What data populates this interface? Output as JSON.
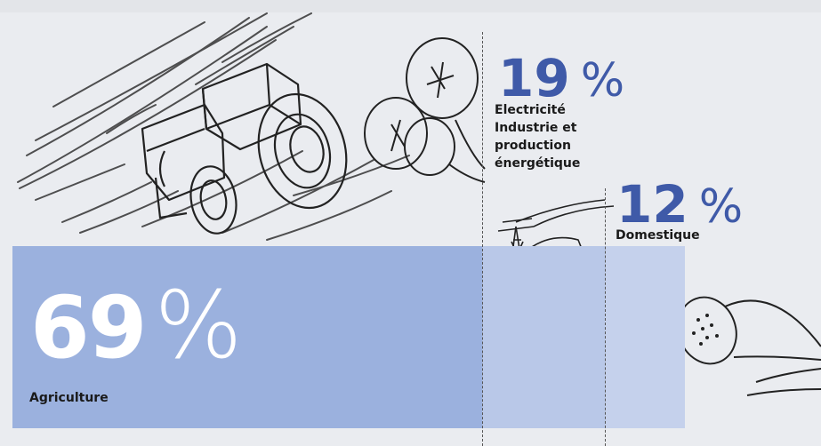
{
  "chart_data": {
    "type": "bar",
    "title": "",
    "categories": [
      "Agriculture",
      "Electricité Industrie et production énergétique",
      "Domestique"
    ],
    "values": [
      69,
      19,
      12
    ],
    "unit": "%",
    "xlabel": "",
    "ylabel": "",
    "grid": false,
    "legend": "none"
  },
  "labels": {
    "agriculture": {
      "value": "69",
      "unit": "%",
      "name": "Agriculture"
    },
    "electricite": {
      "value": "19",
      "unit": "%",
      "lines": [
        "Electricité",
        "Industrie et",
        "production",
        "énergétique"
      ]
    },
    "domestique": {
      "value": "12",
      "unit": "%",
      "name": "Domestique"
    }
  },
  "colors": {
    "agriculture_bar": "#9bb1de",
    "electricite_bar": "#b9c8e8",
    "domestique_bar": "#c5d1ec",
    "accent_text": "#3f5aa8",
    "big_white": "#ffffff"
  },
  "illustrations": [
    "tractor-sketch",
    "trees-sketch",
    "power-pylon-sketch",
    "tanker-truck-sketch",
    "shower-head-sketch"
  ]
}
